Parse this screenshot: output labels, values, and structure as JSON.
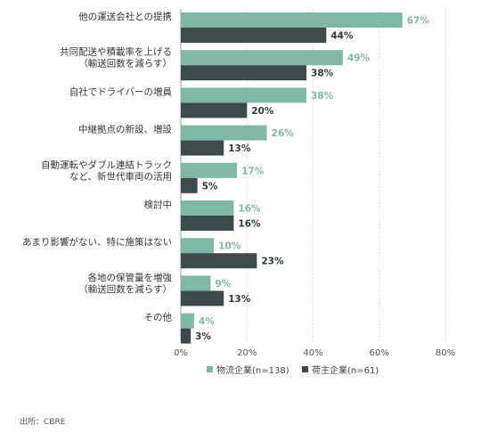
{
  "chart_data": {
    "type": "bar",
    "orientation": "horizontal",
    "categories": [
      [
        "他の運送会社との提携"
      ],
      [
        "共同配送や積載率を上げる",
        "（輸送回数を減らす）"
      ],
      [
        "自社でドライバーの増員"
      ],
      [
        "中継拠点の新設、増設"
      ],
      [
        "自動運転やダブル連結トラック",
        "など、新世代車両の活用"
      ],
      [
        "検討中"
      ],
      [
        "あまり影響がない、特に施策はない"
      ],
      [
        "各地の保管量を増強",
        "（輸送回数を減らす）"
      ],
      [
        "その他"
      ]
    ],
    "series": [
      {
        "name": "物流企業(n=138)",
        "color": "#7fb8a6",
        "values": [
          67,
          49,
          38,
          26,
          17,
          16,
          10,
          9,
          4
        ]
      },
      {
        "name": "荷主企業(n=61)",
        "color": "#3d4a4c",
        "values": [
          44,
          38,
          20,
          13,
          5,
          16,
          23,
          13,
          3
        ]
      }
    ],
    "xlim": [
      0,
      80
    ],
    "xticks": [
      "0%",
      "20%",
      "40%",
      "60%",
      "80%"
    ],
    "value_suffix": "%",
    "grid": true,
    "legend_position": "bottom"
  },
  "source_note": "出所：CBRE"
}
